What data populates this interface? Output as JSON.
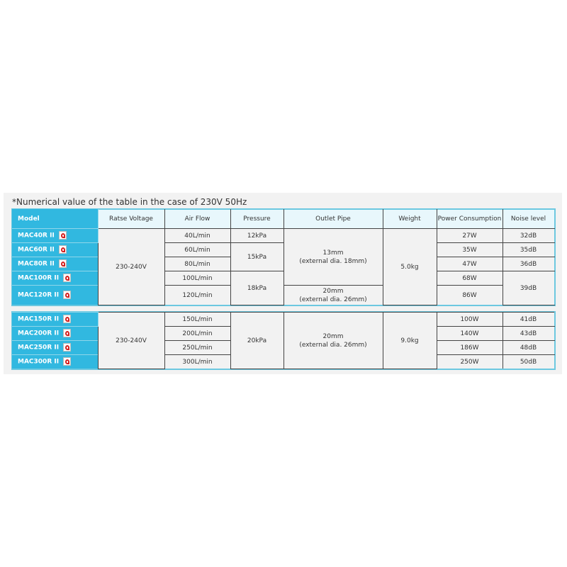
{
  "note": "*Numerical value of the table in the case of 230V 50Hz",
  "headers": {
    "model": "Model",
    "voltage": "Ratse Voltage",
    "airflow": "Air Flow",
    "pressure": "Pressure",
    "outlet": "Outlet Pipe",
    "weight": "Weight",
    "power": "Power Consumption",
    "noise": "Noise level"
  },
  "group1": {
    "models": [
      "MAC40R II",
      "MAC60R II",
      "MAC80R II",
      "MAC100R II",
      "MAC120R II"
    ],
    "voltage": "230-240V",
    "airflow": [
      "40L/min",
      "60L/min",
      "80L/min",
      "100L/min",
      "120L/min"
    ],
    "pressure": [
      "12kPa",
      "15kPa",
      "18kPa"
    ],
    "outlet": [
      {
        "size": "13mm",
        "ext": "(external dia. 18mm)"
      },
      {
        "size": "20mm",
        "ext": "(external dia. 26mm)"
      }
    ],
    "weight": "5.0kg",
    "power": [
      "27W",
      "35W",
      "47W",
      "68W",
      "86W"
    ],
    "noise": [
      "32dB",
      "35dB",
      "36dB",
      "39dB"
    ]
  },
  "group2": {
    "models": [
      "MAC150R II",
      "MAC200R II",
      "MAC250R II",
      "MAC300R II"
    ],
    "voltage": "230-240V",
    "airflow": [
      "150L/min",
      "200L/min",
      "250L/min",
      "300L/min"
    ],
    "pressure": "20kPa",
    "outlet": {
      "size": "20mm",
      "ext": "(external dia. 26mm)"
    },
    "weight": "9.0kg",
    "power": [
      "100W",
      "140W",
      "186W",
      "250W"
    ],
    "noise": [
      "41dB",
      "43dB",
      "48dB",
      "50dB"
    ]
  },
  "icons": {
    "pdf": "pdf-icon",
    "pdf_color": "#d42020"
  },
  "colors": {
    "model_bg": "#31b8e0",
    "header_bg": "#e8f7fc"
  }
}
